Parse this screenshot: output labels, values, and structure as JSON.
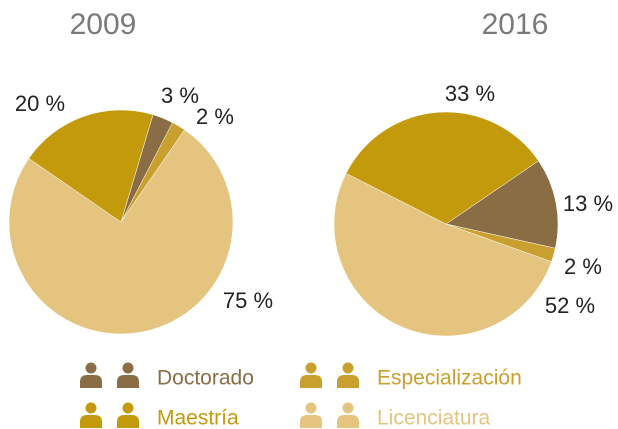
{
  "chart_data": [
    {
      "type": "pie",
      "title": "2009",
      "categories": [
        "Doctorado",
        "Especialización",
        "Licenciatura",
        "Maestría"
      ],
      "values": [
        3,
        2,
        75,
        20
      ],
      "value_labels": [
        "3 %",
        "2 %",
        "75 %",
        "20 %"
      ],
      "colors": [
        "#8a6d45",
        "#c9a030",
        "#e4c47e",
        "#c39a0c"
      ]
    },
    {
      "type": "pie",
      "title": "2016",
      "categories": [
        "Doctorado",
        "Especialización",
        "Licenciatura",
        "Maestría"
      ],
      "values": [
        13,
        2,
        52,
        33
      ],
      "value_labels": [
        "13 %",
        "2 %",
        "52 %",
        "33 %"
      ],
      "colors": [
        "#8a6d45",
        "#c9a030",
        "#e4c47e",
        "#c39a0c"
      ]
    }
  ]
}
